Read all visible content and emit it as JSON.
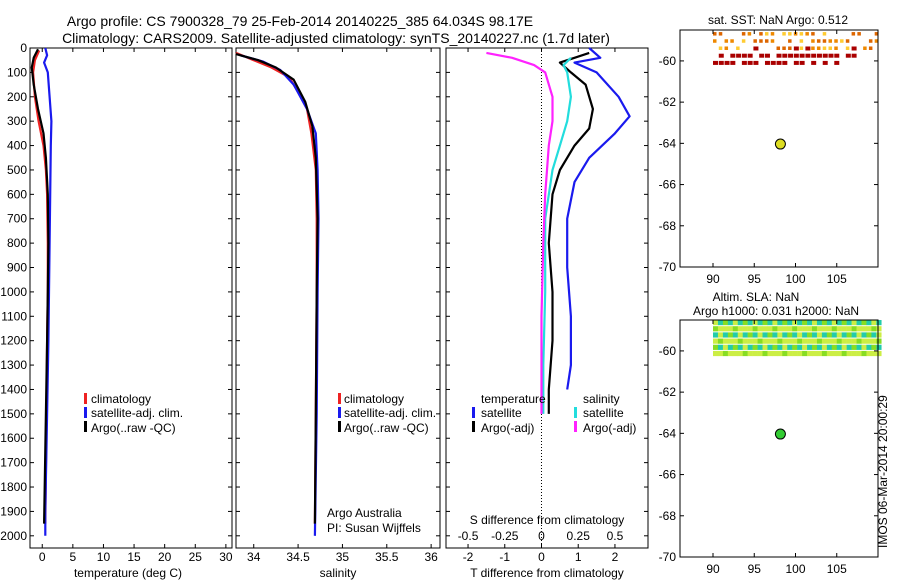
{
  "titles": {
    "line1": "Argo profile: CS 7900328_79 25-Feb-2014 20140225_385 64.034S 98.17E",
    "line2": "Climatology: CARS2009. Satellite-adjusted climatology: synTS_20140227.nc (1.7d later)"
  },
  "colors": {
    "climatology": "#ee2222",
    "satellite": "#1a1aee",
    "argo": "#000000",
    "cyan": "#22dddd",
    "magenta": "#ff22ff",
    "sst_orange": "#ee8800",
    "sst_darkred": "#aa0000",
    "float_marker": "#dddd22",
    "float_marker_sla": "#33cc33"
  },
  "chart_data": [
    {
      "type": "line",
      "panel": "temperature",
      "xlabel": "temperature (deg C)",
      "ylabel": "",
      "xlim": [
        -2,
        31
      ],
      "ylim": [
        2050,
        0
      ],
      "xticks": [
        "0",
        "5",
        "10",
        "15",
        "20",
        "25",
        "30"
      ],
      "yticks": [
        "0",
        "100",
        "200",
        "300",
        "400",
        "500",
        "600",
        "700",
        "800",
        "900",
        "1000",
        "1100",
        "1200",
        "1300",
        "1400",
        "1500",
        "1600",
        "1700",
        "1800",
        "1900",
        "2000"
      ],
      "legend_position": "lower-middle",
      "legend": [
        "climatology",
        "satellite-adj. clim.",
        "Argo(..raw -QC)"
      ],
      "series": [
        {
          "name": "climatology",
          "color_key": "climatology",
          "points": [
            [
              -0.5,
              10
            ],
            [
              -1.2,
              50
            ],
            [
              -1.5,
              100
            ],
            [
              -1.2,
              200
            ],
            [
              -0.6,
              300
            ],
            [
              0.2,
              400
            ],
            [
              0.6,
              500
            ],
            [
              0.8,
              600
            ],
            [
              0.9,
              800
            ],
            [
              0.9,
              1000
            ],
            [
              0.8,
              1200
            ],
            [
              0.7,
              1500
            ],
            [
              0.5,
              1950
            ]
          ]
        },
        {
          "name": "satellite-adj. clim.",
          "color_key": "satellite",
          "points": [
            [
              0.5,
              0
            ],
            [
              0.8,
              30
            ],
            [
              0.3,
              60
            ],
            [
              0.9,
              100
            ],
            [
              1.2,
              200
            ],
            [
              1.5,
              300
            ],
            [
              1.4,
              400
            ],
            [
              1.3,
              600
            ],
            [
              1.2,
              800
            ],
            [
              1.1,
              1000
            ],
            [
              1.0,
              1200
            ],
            [
              0.8,
              1500
            ],
            [
              0.5,
              1900
            ],
            [
              0.5,
              2000
            ]
          ]
        },
        {
          "name": "Argo(..raw -QC)",
          "color_key": "argo",
          "points": [
            [
              -0.7,
              5
            ],
            [
              -1.4,
              40
            ],
            [
              -1.7,
              80
            ],
            [
              -1.4,
              150
            ],
            [
              -0.7,
              250
            ],
            [
              0.2,
              350
            ],
            [
              0.6,
              450
            ],
            [
              0.9,
              600
            ],
            [
              1.0,
              800
            ],
            [
              0.9,
              1000
            ],
            [
              0.8,
              1200
            ],
            [
              0.6,
              1500
            ],
            [
              0.3,
              1950
            ]
          ]
        }
      ]
    },
    {
      "type": "line",
      "panel": "salinity",
      "xlabel": "salinity",
      "ylabel": "",
      "xlim": [
        33.8,
        36.1
      ],
      "ylim": [
        2050,
        0
      ],
      "xticks": [
        "34",
        "34.5",
        "35",
        "35.5",
        "36"
      ],
      "legend_position": "lower-middle",
      "legend": [
        "climatology",
        "satellite-adj. clim.",
        "Argo(..raw -QC)"
      ],
      "annotations": [
        "Argo Australia",
        "PI: Susan Wijffels"
      ],
      "series": [
        {
          "name": "climatology",
          "color_key": "climatology",
          "points": [
            [
              33.8,
              20
            ],
            [
              34.0,
              50
            ],
            [
              34.2,
              80
            ],
            [
              34.4,
              120
            ],
            [
              34.5,
              180
            ],
            [
              34.6,
              250
            ],
            [
              34.65,
              350
            ],
            [
              34.7,
              500
            ],
            [
              34.71,
              700
            ],
            [
              34.71,
              1000
            ],
            [
              34.7,
              1500
            ],
            [
              34.69,
              1950
            ]
          ]
        },
        {
          "name": "satellite-adj. clim.",
          "color_key": "satellite",
          "points": [
            [
              33.85,
              30
            ],
            [
              34.1,
              55
            ],
            [
              34.3,
              90
            ],
            [
              34.45,
              150
            ],
            [
              34.6,
              250
            ],
            [
              34.7,
              350
            ],
            [
              34.72,
              500
            ],
            [
              34.73,
              700
            ],
            [
              34.72,
              1000
            ],
            [
              34.71,
              1500
            ],
            [
              34.69,
              2000
            ]
          ]
        },
        {
          "name": "Argo(..raw -QC)",
          "color_key": "argo",
          "points": [
            [
              33.8,
              25
            ],
            [
              34.05,
              50
            ],
            [
              34.25,
              80
            ],
            [
              34.45,
              130
            ],
            [
              34.58,
              220
            ],
            [
              34.66,
              320
            ],
            [
              34.7,
              450
            ],
            [
              34.72,
              700
            ],
            [
              34.71,
              1000
            ],
            [
              34.7,
              1500
            ],
            [
              34.69,
              1950
            ]
          ]
        }
      ]
    },
    {
      "type": "line",
      "panel": "difference",
      "xlabel": "T difference from climatology",
      "xlabel_top": "S difference from climatology",
      "xlim": [
        -2.6,
        2.9
      ],
      "ylim": [
        2050,
        0
      ],
      "xticks": [
        "-2",
        "-1",
        "0",
        "1",
        "2"
      ],
      "xticks_s": [
        "-0.5",
        "-0.25",
        "0",
        "0.25",
        "0.5"
      ],
      "legend_position": "lower-middle",
      "legend_headers": [
        "temperature",
        "salinity"
      ],
      "legend": [
        "satellite",
        "Argo(-adj)",
        "satellite",
        "Argo(-adj)"
      ],
      "series": [
        {
          "name": "T satellite",
          "color_key": "satellite",
          "points": [
            [
              1.3,
              0
            ],
            [
              1.6,
              40
            ],
            [
              0.9,
              60
            ],
            [
              1.5,
              100
            ],
            [
              2.1,
              200
            ],
            [
              2.4,
              280
            ],
            [
              2.0,
              350
            ],
            [
              1.3,
              450
            ],
            [
              0.9,
              550
            ],
            [
              0.7,
              700
            ],
            [
              0.7,
              900
            ],
            [
              0.8,
              1100
            ],
            [
              0.8,
              1300
            ],
            [
              0.7,
              1400
            ]
          ]
        },
        {
          "name": "T Argo(-adj)",
          "color_key": "argo",
          "points": [
            [
              1.3,
              20
            ],
            [
              0.9,
              40
            ],
            [
              0.5,
              60
            ],
            [
              0.8,
              100
            ],
            [
              1.2,
              150
            ],
            [
              1.4,
              250
            ],
            [
              1.3,
              330
            ],
            [
              0.9,
              400
            ],
            [
              0.5,
              500
            ],
            [
              0.3,
              600
            ],
            [
              0.2,
              800
            ],
            [
              0.3,
              1000
            ],
            [
              0.3,
              1200
            ],
            [
              0.2,
              1400
            ],
            [
              0.2,
              1500
            ]
          ]
        },
        {
          "name": "S satellite",
          "color_key": "cyan",
          "points": [
            [
              0.8,
              40
            ],
            [
              0.6,
              70
            ],
            [
              0.7,
              100
            ],
            [
              0.8,
              200
            ],
            [
              0.7,
              300
            ],
            [
              0.5,
              400
            ],
            [
              0.3,
              500
            ],
            [
              0.1,
              700
            ],
            [
              0.1,
              1000
            ],
            [
              0.05,
              1300
            ],
            [
              0.05,
              1500
            ]
          ]
        },
        {
          "name": "S Argo(-adj)",
          "color_key": "magenta",
          "points": [
            [
              -1.5,
              20
            ],
            [
              -0.8,
              40
            ],
            [
              -0.2,
              70
            ],
            [
              0.1,
              100
            ],
            [
              0.3,
              200
            ],
            [
              0.3,
              300
            ],
            [
              0.2,
              400
            ],
            [
              0.1,
              600
            ],
            [
              0.05,
              800
            ],
            [
              0.0,
              1100
            ],
            [
              0.0,
              1500
            ]
          ]
        }
      ]
    },
    {
      "type": "scatter",
      "panel": "sst-map",
      "title": "sat. SST: NaN Argo: 0.512",
      "xlim": [
        86,
        110
      ],
      "ylim": [
        -70,
        -58.5
      ],
      "xticks": [
        "90",
        "95",
        "100",
        "105"
      ],
      "yticks": [
        "-60",
        "-62",
        "-64",
        "-66",
        "-68",
        "-70"
      ],
      "float": {
        "lon": 98.17,
        "lat": -64.034
      }
    },
    {
      "type": "heatmap",
      "panel": "sla-map",
      "title_line1": "Altim. SLA: NaN",
      "title_line2": "Argo h1000: 0.031 h2000: NaN",
      "xlim": [
        86,
        110
      ],
      "ylim": [
        -70,
        -58.5
      ],
      "xticks": [
        "90",
        "95",
        "100",
        "105"
      ],
      "yticks": [
        "-60",
        "-62",
        "-64",
        "-66",
        "-68",
        "-70"
      ],
      "float": {
        "lon": 98.17,
        "lat": -64.034
      },
      "side_text": "IMOS 06-Mar-2014 20:00:29"
    }
  ]
}
